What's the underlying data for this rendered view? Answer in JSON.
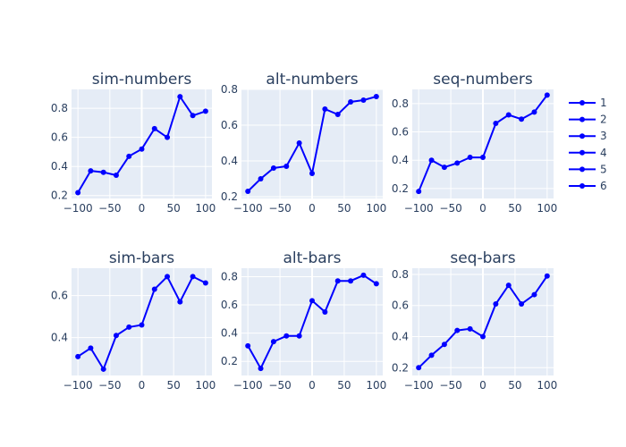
{
  "chart_data": [
    {
      "type": "line",
      "title": "sim-numbers",
      "x": [
        -100,
        -80,
        -60,
        -40,
        -20,
        0,
        20,
        40,
        60,
        80,
        100
      ],
      "series": [
        {
          "name": "1",
          "values": [
            0.22,
            0.37,
            0.36,
            0.34,
            0.47,
            0.52,
            0.66,
            0.6,
            0.88,
            0.75,
            0.78
          ]
        }
      ],
      "xlim": [
        -110,
        110
      ],
      "ylim": [
        0.18,
        0.93
      ],
      "xticks": [
        -100,
        -50,
        0,
        50,
        100
      ],
      "yticks": [
        0.2,
        0.4,
        0.6,
        0.8
      ],
      "ytick_labels": [
        "0.2",
        "0.4",
        "0.6",
        "0.8"
      ]
    },
    {
      "type": "line",
      "title": "alt-numbers",
      "x": [
        -100,
        -80,
        -60,
        -40,
        -20,
        0,
        20,
        40,
        60,
        80,
        100
      ],
      "series": [
        {
          "name": "2",
          "values": [
            0.23,
            0.3,
            0.36,
            0.37,
            0.5,
            0.33,
            0.69,
            0.66,
            0.73,
            0.74,
            0.76
          ]
        }
      ],
      "xlim": [
        -110,
        110
      ],
      "ylim": [
        0.19,
        0.8
      ],
      "xticks": [
        -100,
        -50,
        0,
        50,
        100
      ],
      "yticks": [
        0.2,
        0.4,
        0.6,
        0.8
      ],
      "ytick_labels": [
        "0.2",
        "0.4",
        "0.6",
        "0.8"
      ]
    },
    {
      "type": "line",
      "title": "seq-numbers",
      "x": [
        -100,
        -80,
        -60,
        -40,
        -20,
        0,
        20,
        40,
        60,
        80,
        100
      ],
      "series": [
        {
          "name": "3",
          "values": [
            0.18,
            0.4,
            0.35,
            0.38,
            0.42,
            0.42,
            0.66,
            0.72,
            0.69,
            0.74,
            0.86
          ]
        }
      ],
      "xlim": [
        -110,
        110
      ],
      "ylim": [
        0.13,
        0.9
      ],
      "xticks": [
        -100,
        -50,
        0,
        50,
        100
      ],
      "yticks": [
        0.2,
        0.4,
        0.6,
        0.8
      ],
      "ytick_labels": [
        "0.2",
        "0.4",
        "0.6",
        "0.8"
      ]
    },
    {
      "type": "line",
      "title": "sim-bars",
      "x": [
        -100,
        -80,
        -60,
        -40,
        -20,
        0,
        20,
        40,
        60,
        80,
        100
      ],
      "series": [
        {
          "name": "4",
          "values": [
            0.31,
            0.35,
            0.25,
            0.41,
            0.45,
            0.46,
            0.63,
            0.69,
            0.57,
            0.69,
            0.66
          ]
        }
      ],
      "xlim": [
        -110,
        110
      ],
      "ylim": [
        0.22,
        0.73
      ],
      "xticks": [
        -100,
        -50,
        0,
        50,
        100
      ],
      "yticks": [
        0.4,
        0.6
      ],
      "ytick_labels": [
        "0.4",
        "0.6"
      ]
    },
    {
      "type": "line",
      "title": "alt-bars",
      "x": [
        -100,
        -80,
        -60,
        -40,
        -20,
        0,
        20,
        40,
        60,
        80,
        100
      ],
      "series": [
        {
          "name": "5",
          "values": [
            0.31,
            0.15,
            0.34,
            0.38,
            0.38,
            0.63,
            0.55,
            0.77,
            0.77,
            0.81,
            0.75
          ]
        }
      ],
      "xlim": [
        -110,
        110
      ],
      "ylim": [
        0.1,
        0.86
      ],
      "xticks": [
        -100,
        -50,
        0,
        50,
        100
      ],
      "yticks": [
        0.2,
        0.4,
        0.6,
        0.8
      ],
      "ytick_labels": [
        "0.2",
        "0.4",
        "0.6",
        "0.8"
      ]
    },
    {
      "type": "line",
      "title": "seq-bars",
      "x": [
        -100,
        -80,
        -60,
        -40,
        -20,
        0,
        20,
        40,
        60,
        80,
        100
      ],
      "series": [
        {
          "name": "6",
          "values": [
            0.2,
            0.28,
            0.35,
            0.44,
            0.45,
            0.4,
            0.61,
            0.73,
            0.61,
            0.67,
            0.79
          ]
        }
      ],
      "xlim": [
        -110,
        110
      ],
      "ylim": [
        0.15,
        0.84
      ],
      "xticks": [
        -100,
        -50,
        0,
        50,
        100
      ],
      "yticks": [
        0.2,
        0.4,
        0.6,
        0.8
      ],
      "ytick_labels": [
        "0.2",
        "0.4",
        "0.6",
        "0.8"
      ]
    }
  ],
  "legend": {
    "entries": [
      "1",
      "2",
      "3",
      "4",
      "5",
      "6"
    ],
    "placement": "right"
  },
  "colors": {
    "line": "#0000ff",
    "plot_bg": "#e5ecf6",
    "grid": "#ffffff",
    "text": "#2a3f5f"
  }
}
